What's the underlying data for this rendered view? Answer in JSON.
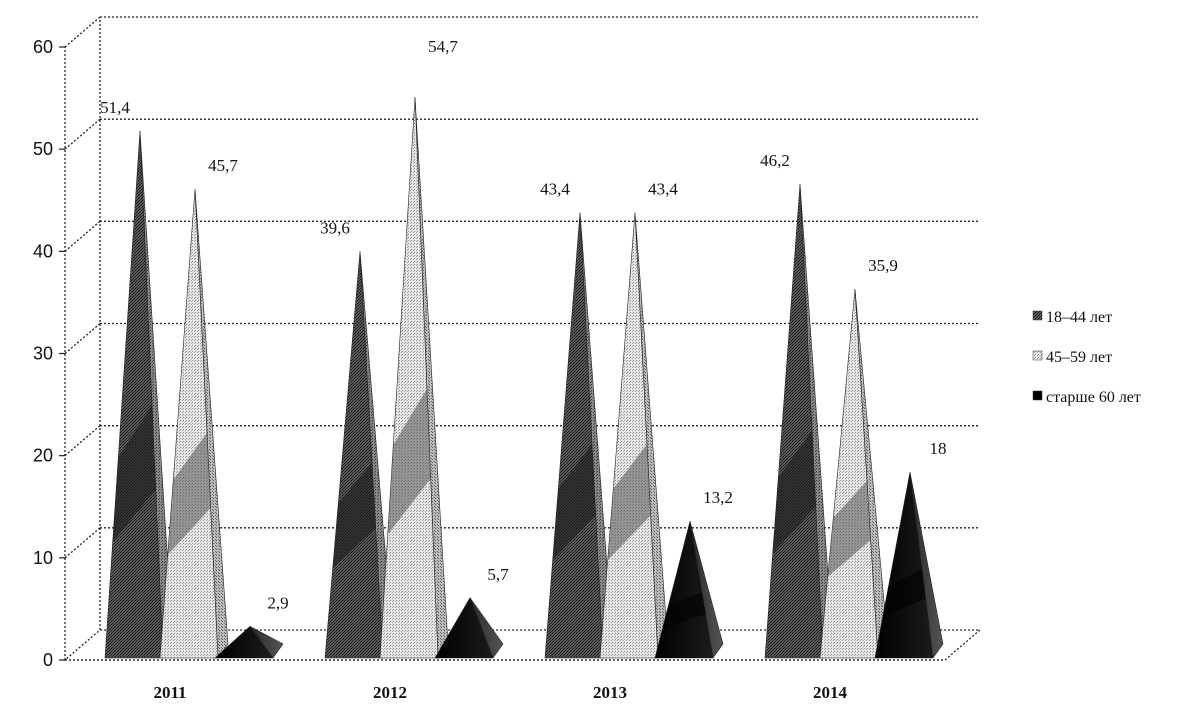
{
  "chart_data": {
    "type": "bar",
    "categories": [
      "2011",
      "2012",
      "2013",
      "2014"
    ],
    "series": [
      {
        "name": "18–44 лет",
        "values": [
          51.4,
          39.6,
          43.4,
          46.2
        ],
        "labels": [
          "51,4",
          "39,6",
          "43,4",
          "46,2"
        ]
      },
      {
        "name": "45–59 лет",
        "values": [
          45.7,
          54.7,
          43.4,
          35.9
        ],
        "labels": [
          "45,7",
          "54,7",
          "43,4",
          "35,9"
        ]
      },
      {
        "name": "старше 60 лет",
        "values": [
          2.9,
          5.7,
          13.2,
          18
        ],
        "labels": [
          "2,9",
          "5,7",
          "13,2",
          "18"
        ]
      }
    ],
    "ylim": [
      0,
      60
    ],
    "yticks": [
      "0",
      "10",
      "20",
      "30",
      "40",
      "50",
      "60"
    ],
    "grid": true,
    "legend_position": "right",
    "colors": [
      "#3a3a3a",
      "#bdbdbd",
      "#0a0a0a"
    ]
  }
}
